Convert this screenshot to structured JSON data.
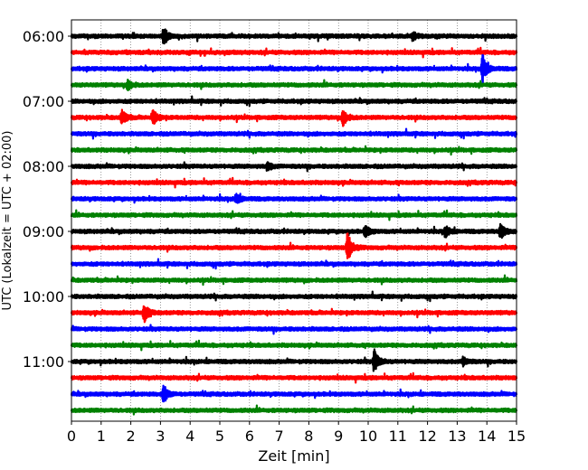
{
  "chart_data": {
    "type": "line",
    "title": "",
    "xlabel": "Zeit  [min]",
    "ylabel": "UTC (Lokalzeit = UTC + 02:00)",
    "xlim": [
      0,
      15
    ],
    "xticks": [
      "0",
      "1",
      "2",
      "3",
      "4",
      "5",
      "6",
      "7",
      "8",
      "9",
      "10",
      "11",
      "12",
      "13",
      "14",
      "15"
    ],
    "yticks": [
      "06:00",
      "07:00",
      "08:00",
      "09:00",
      "10:00",
      "11:00"
    ],
    "grid": "vertical dotted lines at each minute",
    "color_cycle": [
      "#000000",
      "#ff0000",
      "#0000ff",
      "#008000"
    ],
    "trace_start_times": [
      "06:00",
      "06:15",
      "06:30",
      "06:45",
      "07:00",
      "07:15",
      "07:30",
      "07:45",
      "08:00",
      "08:15",
      "08:30",
      "08:45",
      "09:00",
      "09:15",
      "09:30",
      "09:45",
      "10:00",
      "10:15",
      "10:30",
      "10:45",
      "11:00",
      "11:15",
      "11:30",
      "11:45"
    ],
    "events": [
      {
        "start": "06:00",
        "minute": 3.1,
        "amplitude": 0.55
      },
      {
        "start": "06:00",
        "minute": 11.5,
        "amplitude": 0.25
      },
      {
        "start": "06:30",
        "minute": 13.85,
        "amplitude": 0.9
      },
      {
        "start": "06:45",
        "minute": 1.9,
        "amplitude": 0.3
      },
      {
        "start": "07:15",
        "minute": 1.7,
        "amplitude": 0.45
      },
      {
        "start": "07:15",
        "minute": 2.75,
        "amplitude": 0.45
      },
      {
        "start": "07:15",
        "minute": 9.15,
        "amplitude": 0.5
      },
      {
        "start": "08:00",
        "minute": 6.6,
        "amplitude": 0.25
      },
      {
        "start": "08:30",
        "minute": 5.55,
        "amplitude": 0.3
      },
      {
        "start": "09:00",
        "minute": 9.9,
        "amplitude": 0.35
      },
      {
        "start": "09:00",
        "minute": 12.6,
        "amplitude": 0.35
      },
      {
        "start": "09:00",
        "minute": 14.45,
        "amplitude": 0.5
      },
      {
        "start": "09:15",
        "minute": 9.3,
        "amplitude": 1.0
      },
      {
        "start": "10:15",
        "minute": 2.45,
        "amplitude": 0.6
      },
      {
        "start": "11:00",
        "minute": 10.2,
        "amplitude": 0.75
      },
      {
        "start": "11:00",
        "minute": 13.2,
        "amplitude": 0.25
      },
      {
        "start": "11:30",
        "minute": 3.1,
        "amplitude": 0.55
      }
    ]
  }
}
